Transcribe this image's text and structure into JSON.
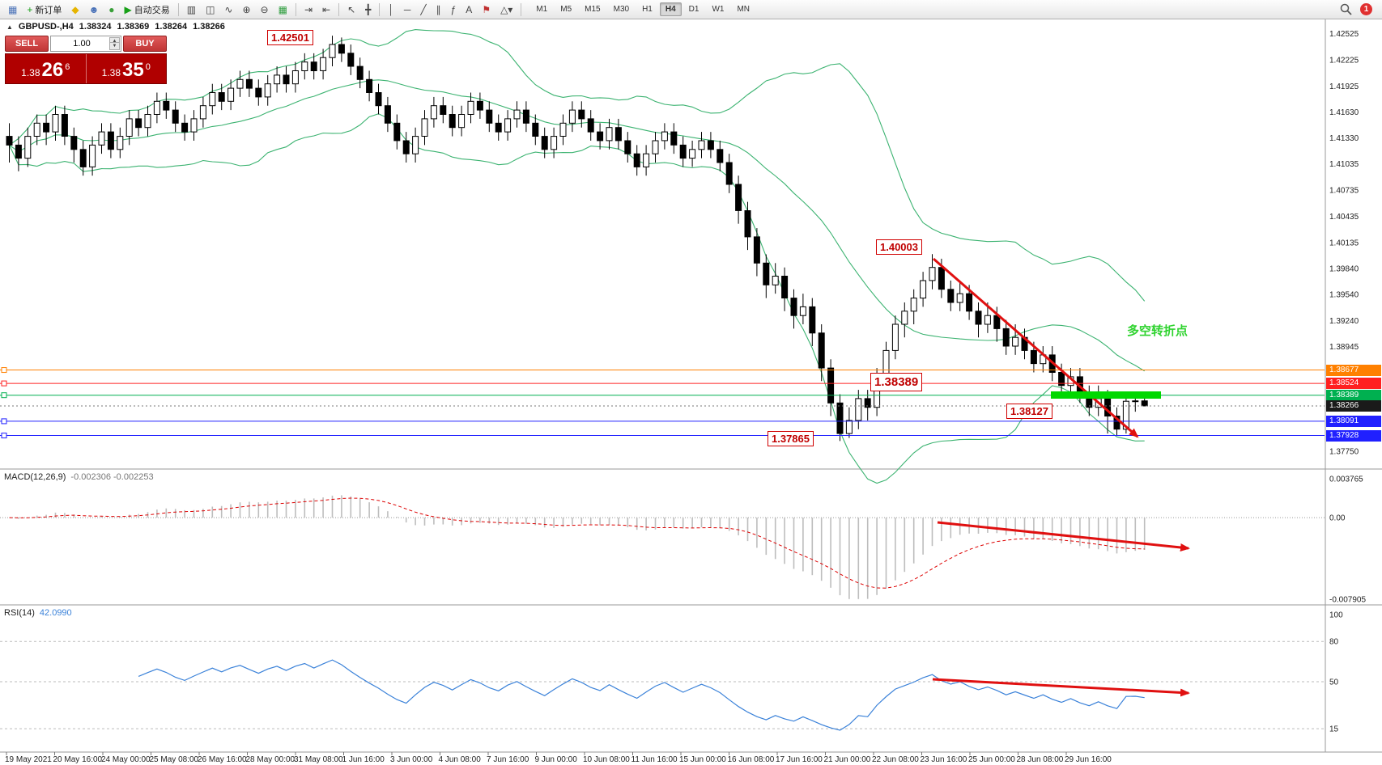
{
  "colors": {
    "accent_red": "#e01010",
    "bollinger_green": "#3CB371",
    "rsi_blue": "#3b82d9",
    "macd_hist": "#bdbdbd",
    "macd_signal": "#dd0000",
    "highlight_green": "#00d800",
    "candle_up": "#ffffff",
    "candle_down": "#000000",
    "tag_current_bg": "#1a1a1a"
  },
  "icons": {
    "collapse": "▲",
    "spin_up": "▲",
    "spin_down": "▼"
  },
  "toolbar": {
    "items": [
      {
        "type": "icon",
        "name": "terminal-icon",
        "glyph": "▦",
        "color": "#4a72b8"
      },
      {
        "type": "button",
        "name": "new-order-button",
        "glyph": "+",
        "color": "#18a018",
        "label": "新订单"
      },
      {
        "type": "icon",
        "name": "market-icon",
        "glyph": "◆",
        "color": "#e6b400"
      },
      {
        "type": "icon",
        "name": "profile-icon",
        "glyph": "☻",
        "color": "#4a72b8"
      },
      {
        "type": "icon",
        "name": "signals-icon",
        "glyph": "●",
        "color": "#3aa03a"
      },
      {
        "type": "button",
        "name": "auto-trading-button",
        "glyph": "▶",
        "color": "#18a018",
        "label": "自动交易"
      },
      {
        "type": "sep"
      },
      {
        "type": "icon",
        "name": "bar-chart-icon",
        "glyph": "▥",
        "color": "#444444"
      },
      {
        "type": "icon",
        "name": "candlestick-chart-icon",
        "glyph": "◫",
        "color": "#444444"
      },
      {
        "type": "icon",
        "name": "line-chart-icon",
        "glyph": "∿",
        "color": "#444444"
      },
      {
        "type": "icon",
        "name": "zoom-in-icon",
        "glyph": "⊕",
        "color": "#444444"
      },
      {
        "type": "icon",
        "name": "zoom-out-icon",
        "glyph": "⊖",
        "color": "#444444"
      },
      {
        "type": "icon",
        "name": "tile-windows-icon",
        "glyph": "▦",
        "color": "#2f9e3f"
      },
      {
        "type": "sep"
      },
      {
        "type": "icon",
        "name": "autoscroll-icon",
        "glyph": "⇥",
        "color": "#444444"
      },
      {
        "type": "icon",
        "name": "chart-shift-icon",
        "glyph": "⇤",
        "color": "#444444"
      },
      {
        "type": "sep"
      },
      {
        "type": "icon",
        "name": "cursor-icon",
        "glyph": "↖",
        "color": "#444444"
      },
      {
        "type": "icon",
        "name": "crosshair-icon",
        "glyph": "╋",
        "color": "#444444"
      },
      {
        "type": "sep"
      },
      {
        "type": "icon",
        "name": "vertical-line-icon",
        "glyph": "│",
        "color": "#444444"
      },
      {
        "type": "icon",
        "name": "horizontal-line-icon",
        "glyph": "─",
        "color": "#444444"
      },
      {
        "type": "icon",
        "name": "trendline-icon",
        "glyph": "╱",
        "color": "#444444"
      },
      {
        "type": "icon",
        "name": "channel-icon",
        "glyph": "∥",
        "color": "#444444"
      },
      {
        "type": "icon",
        "name": "fibonacci-icon",
        "glyph": "ƒ",
        "color": "#444444"
      },
      {
        "type": "icon",
        "name": "text-icon",
        "glyph": "A",
        "color": "#444444"
      },
      {
        "type": "icon",
        "name": "arrow-label-icon",
        "glyph": "⚑",
        "color": "#c03030"
      },
      {
        "type": "icon",
        "name": "shapes-icon",
        "glyph": "△▾",
        "color": "#444444"
      },
      {
        "type": "sep"
      }
    ],
    "timeframes": [
      "M1",
      "M5",
      "M15",
      "M30",
      "H1",
      "H4",
      "D1",
      "W1",
      "MN"
    ],
    "active_timeframe": "H4",
    "notification_count": "1"
  },
  "one_click": {
    "sell_label": "SELL",
    "buy_label": "BUY",
    "volume": "1.00",
    "sell_price": {
      "head": "1.38",
      "big": "26",
      "sup": "6"
    },
    "buy_price": {
      "head": "1.38",
      "big": "35",
      "sup": "0"
    }
  },
  "chart_data": {
    "type": "candlestick",
    "symbol_period": "GBPUSD-,H4",
    "ohlc_display": {
      "open": "1.38324",
      "high": "1.38369",
      "low": "1.38264",
      "close": "1.38266"
    },
    "ylim": [
      1.376,
      1.4265
    ],
    "price_ticks": [
      "1.42525",
      "1.42225",
      "1.41925",
      "1.41630",
      "1.41330",
      "1.41035",
      "1.40735",
      "1.40435",
      "1.40135",
      "1.39840",
      "1.39540",
      "1.39240",
      "1.38945",
      "1.37750"
    ],
    "price_tags": [
      {
        "label": "1.38677",
        "color": "#ff8000"
      },
      {
        "label": "1.38524",
        "color": "#ff2020"
      },
      {
        "label": "1.38389",
        "color": "#00b050"
      },
      {
        "label": "1.38266",
        "color": "#1a1a1a"
      },
      {
        "label": "1.38091",
        "color": "#2020ff"
      },
      {
        "label": "1.37928",
        "color": "#2020ff"
      }
    ],
    "hlines": [
      {
        "value": 1.38677,
        "color": "#ff8000",
        "style": "solid"
      },
      {
        "value": 1.38524,
        "color": "#ff2020",
        "style": "solid"
      },
      {
        "value": 1.38389,
        "color": "#00b050",
        "style": "solid"
      },
      {
        "value": 1.38266,
        "color": "#777777",
        "style": "dot"
      },
      {
        "value": 1.38091,
        "color": "#2020ff",
        "style": "solid"
      },
      {
        "value": 1.37928,
        "color": "#2020ff",
        "style": "solid"
      }
    ],
    "bollinger": {
      "period": 20,
      "deviation": 2,
      "color": "#3CB371"
    },
    "candles": [
      [
        1.4135,
        1.415,
        1.4105,
        1.4125
      ],
      [
        1.4125,
        1.4135,
        1.4095,
        1.411
      ],
      [
        1.411,
        1.4145,
        1.41,
        1.4135
      ],
      [
        1.4135,
        1.416,
        1.4125,
        1.415
      ],
      [
        1.415,
        1.416,
        1.4125,
        1.414
      ],
      [
        1.414,
        1.417,
        1.413,
        1.416
      ],
      [
        1.416,
        1.417,
        1.4125,
        1.4135
      ],
      [
        1.4135,
        1.4145,
        1.4105,
        1.412
      ],
      [
        1.412,
        1.413,
        1.409,
        1.41
      ],
      [
        1.41,
        1.4135,
        1.409,
        1.4125
      ],
      [
        1.4125,
        1.415,
        1.4115,
        1.414
      ],
      [
        1.414,
        1.415,
        1.411,
        1.412
      ],
      [
        1.412,
        1.4145,
        1.411,
        1.4135
      ],
      [
        1.4135,
        1.4165,
        1.4125,
        1.4155
      ],
      [
        1.4155,
        1.4165,
        1.4135,
        1.4145
      ],
      [
        1.4145,
        1.417,
        1.4135,
        1.416
      ],
      [
        1.416,
        1.4185,
        1.415,
        1.4175
      ],
      [
        1.4175,
        1.4185,
        1.4155,
        1.4165
      ],
      [
        1.4165,
        1.4175,
        1.414,
        1.415
      ],
      [
        1.415,
        1.416,
        1.413,
        1.414
      ],
      [
        1.414,
        1.4165,
        1.413,
        1.4155
      ],
      [
        1.4155,
        1.418,
        1.4145,
        1.417
      ],
      [
        1.417,
        1.4195,
        1.416,
        1.4185
      ],
      [
        1.4185,
        1.4195,
        1.4165,
        1.4175
      ],
      [
        1.4175,
        1.42,
        1.4165,
        1.419
      ],
      [
        1.419,
        1.421,
        1.418,
        1.42
      ],
      [
        1.42,
        1.421,
        1.418,
        1.419
      ],
      [
        1.419,
        1.42,
        1.417,
        1.418
      ],
      [
        1.418,
        1.4205,
        1.417,
        1.4195
      ],
      [
        1.4195,
        1.4215,
        1.4185,
        1.4205
      ],
      [
        1.4205,
        1.4215,
        1.4185,
        1.4195
      ],
      [
        1.4195,
        1.422,
        1.4185,
        1.421
      ],
      [
        1.421,
        1.423,
        1.42,
        1.422
      ],
      [
        1.422,
        1.423,
        1.42,
        1.421
      ],
      [
        1.421,
        1.4235,
        1.42,
        1.4225
      ],
      [
        1.4225,
        1.42501,
        1.4215,
        1.424
      ],
      [
        1.424,
        1.4248,
        1.422,
        1.423
      ],
      [
        1.423,
        1.424,
        1.4205,
        1.4215
      ],
      [
        1.4215,
        1.4225,
        1.419,
        1.42
      ],
      [
        1.42,
        1.421,
        1.4175,
        1.4185
      ],
      [
        1.4185,
        1.4195,
        1.416,
        1.417
      ],
      [
        1.417,
        1.418,
        1.414,
        1.415
      ],
      [
        1.415,
        1.416,
        1.412,
        1.413
      ],
      [
        1.413,
        1.414,
        1.4105,
        1.4115
      ],
      [
        1.4115,
        1.4145,
        1.4105,
        1.4135
      ],
      [
        1.4135,
        1.4165,
        1.4125,
        1.4155
      ],
      [
        1.4155,
        1.418,
        1.4145,
        1.417
      ],
      [
        1.417,
        1.418,
        1.415,
        1.416
      ],
      [
        1.416,
        1.417,
        1.4135,
        1.4145
      ],
      [
        1.4145,
        1.417,
        1.4135,
        1.416
      ],
      [
        1.416,
        1.4185,
        1.415,
        1.4175
      ],
      [
        1.4175,
        1.4185,
        1.4155,
        1.4165
      ],
      [
        1.4165,
        1.4175,
        1.414,
        1.415
      ],
      [
        1.415,
        1.416,
        1.413,
        1.414
      ],
      [
        1.414,
        1.4165,
        1.413,
        1.4155
      ],
      [
        1.4155,
        1.4175,
        1.4145,
        1.4165
      ],
      [
        1.4165,
        1.4175,
        1.414,
        1.415
      ],
      [
        1.415,
        1.416,
        1.4125,
        1.4135
      ],
      [
        1.4135,
        1.4145,
        1.411,
        1.412
      ],
      [
        1.412,
        1.4145,
        1.411,
        1.4135
      ],
      [
        1.4135,
        1.416,
        1.4125,
        1.415
      ],
      [
        1.415,
        1.4175,
        1.414,
        1.4165
      ],
      [
        1.4165,
        1.4175,
        1.4145,
        1.4155
      ],
      [
        1.4155,
        1.4165,
        1.413,
        1.414
      ],
      [
        1.414,
        1.415,
        1.412,
        1.413
      ],
      [
        1.413,
        1.4155,
        1.412,
        1.4145
      ],
      [
        1.4145,
        1.4155,
        1.412,
        1.413
      ],
      [
        1.413,
        1.414,
        1.4105,
        1.4115
      ],
      [
        1.4115,
        1.4125,
        1.409,
        1.41
      ],
      [
        1.41,
        1.4125,
        1.409,
        1.4115
      ],
      [
        1.4115,
        1.414,
        1.4105,
        1.413
      ],
      [
        1.413,
        1.415,
        1.412,
        1.414
      ],
      [
        1.414,
        1.415,
        1.4115,
        1.4125
      ],
      [
        1.4125,
        1.4135,
        1.41,
        1.411
      ],
      [
        1.411,
        1.413,
        1.41,
        1.412
      ],
      [
        1.412,
        1.414,
        1.411,
        1.413
      ],
      [
        1.413,
        1.414,
        1.411,
        1.412
      ],
      [
        1.412,
        1.413,
        1.4095,
        1.4105
      ],
      [
        1.4105,
        1.4115,
        1.407,
        1.408
      ],
      [
        1.408,
        1.409,
        1.4035,
        1.405
      ],
      [
        1.405,
        1.406,
        1.4005,
        1.402
      ],
      [
        1.402,
        1.403,
        1.3975,
        1.399
      ],
      [
        1.399,
        1.4,
        1.395,
        1.3965
      ],
      [
        1.3965,
        1.399,
        1.3955,
        1.3975
      ],
      [
        1.3975,
        1.3985,
        1.3935,
        1.395
      ],
      [
        1.395,
        1.396,
        1.3915,
        1.393
      ],
      [
        1.393,
        1.3955,
        1.392,
        1.394
      ],
      [
        1.394,
        1.395,
        1.3895,
        1.391
      ],
      [
        1.391,
        1.392,
        1.3855,
        1.387
      ],
      [
        1.387,
        1.388,
        1.3815,
        1.383
      ],
      [
        1.383,
        1.384,
        1.37865,
        1.3795
      ],
      [
        1.3795,
        1.3825,
        1.379,
        1.381
      ],
      [
        1.381,
        1.3845,
        1.38,
        1.3835
      ],
      [
        1.3835,
        1.3845,
        1.381,
        1.3825
      ],
      [
        1.3825,
        1.387,
        1.3815,
        1.386
      ],
      [
        1.386,
        1.39,
        1.385,
        1.389
      ],
      [
        1.389,
        1.393,
        1.388,
        1.392
      ],
      [
        1.392,
        1.3945,
        1.3905,
        1.3935
      ],
      [
        1.3935,
        1.396,
        1.392,
        1.395
      ],
      [
        1.395,
        1.398,
        1.394,
        1.397
      ],
      [
        1.397,
        1.40003,
        1.396,
        1.3985
      ],
      [
        1.3985,
        1.3995,
        1.395,
        1.396
      ],
      [
        1.396,
        1.397,
        1.3935,
        1.3945
      ],
      [
        1.3945,
        1.397,
        1.3935,
        1.3955
      ],
      [
        1.3955,
        1.3965,
        1.3925,
        1.3935
      ],
      [
        1.3935,
        1.3945,
        1.3905,
        1.392
      ],
      [
        1.392,
        1.3945,
        1.391,
        1.393
      ],
      [
        1.393,
        1.394,
        1.39,
        1.3915
      ],
      [
        1.3915,
        1.3925,
        1.3885,
        1.3895
      ],
      [
        1.3895,
        1.392,
        1.3885,
        1.3905
      ],
      [
        1.3905,
        1.3915,
        1.388,
        1.389
      ],
      [
        1.389,
        1.39,
        1.3865,
        1.3875
      ],
      [
        1.3875,
        1.3895,
        1.3865,
        1.3885
      ],
      [
        1.3885,
        1.3895,
        1.3855,
        1.3865
      ],
      [
        1.3865,
        1.3875,
        1.384,
        1.385
      ],
      [
        1.385,
        1.387,
        1.384,
        1.386
      ],
      [
        1.386,
        1.387,
        1.383,
        1.384
      ],
      [
        1.384,
        1.385,
        1.3815,
        1.3825
      ],
      [
        1.3825,
        1.385,
        1.3815,
        1.3835
      ],
      [
        1.3835,
        1.3845,
        1.3795,
        1.3815
      ],
      [
        1.3815,
        1.3825,
        1.3793,
        1.38
      ],
      [
        1.38,
        1.3838,
        1.3795,
        1.3832
      ],
      [
        1.3832,
        1.384,
        1.382,
        1.38324
      ],
      [
        1.38324,
        1.38369,
        1.38264,
        1.38266
      ]
    ],
    "time_labels": [
      "19 May 2021",
      "20 May 16:00",
      "24 May 00:00",
      "25 May 08:00",
      "26 May 16:00",
      "28 May 00:00",
      "31 May 08:00",
      "1 Jun 16:00",
      "3 Jun 00:00",
      "4 Jun 08:00",
      "7 Jun 16:00",
      "9 Jun 00:00",
      "10 Jun 08:00",
      "11 Jun 16:00",
      "15 Jun 00:00",
      "16 Jun 08:00",
      "17 Jun 16:00",
      "21 Jun 00:00",
      "22 Jun 08:00",
      "23 Jun 16:00",
      "25 Jun 00:00",
      "28 Jun 08:00",
      "29 Jun 16:00"
    ],
    "macd": {
      "label": "MACD(12,26,9)",
      "display_values": "-0.002306 -0.002253",
      "fast": 12,
      "slow": 26,
      "signal": 9,
      "axis_ticks": [
        "0.003765",
        "0.00",
        "-0.007905"
      ],
      "range": [
        -0.007905,
        0.003765
      ]
    },
    "rsi": {
      "label": "RSI(14)",
      "display_value": "42.0990",
      "period": 14,
      "axis_ticks": [
        "100",
        "80",
        "50",
        "15"
      ],
      "levels": [
        80,
        50,
        15
      ],
      "range": [
        0,
        100
      ]
    },
    "annotations": {
      "high_label": "1.42501",
      "peak_label": "1.40003",
      "key_level_label": "1.38389",
      "minor_low_label": "1.38127",
      "low_label": "1.37865",
      "turning_point_text": "多空转折点"
    }
  }
}
